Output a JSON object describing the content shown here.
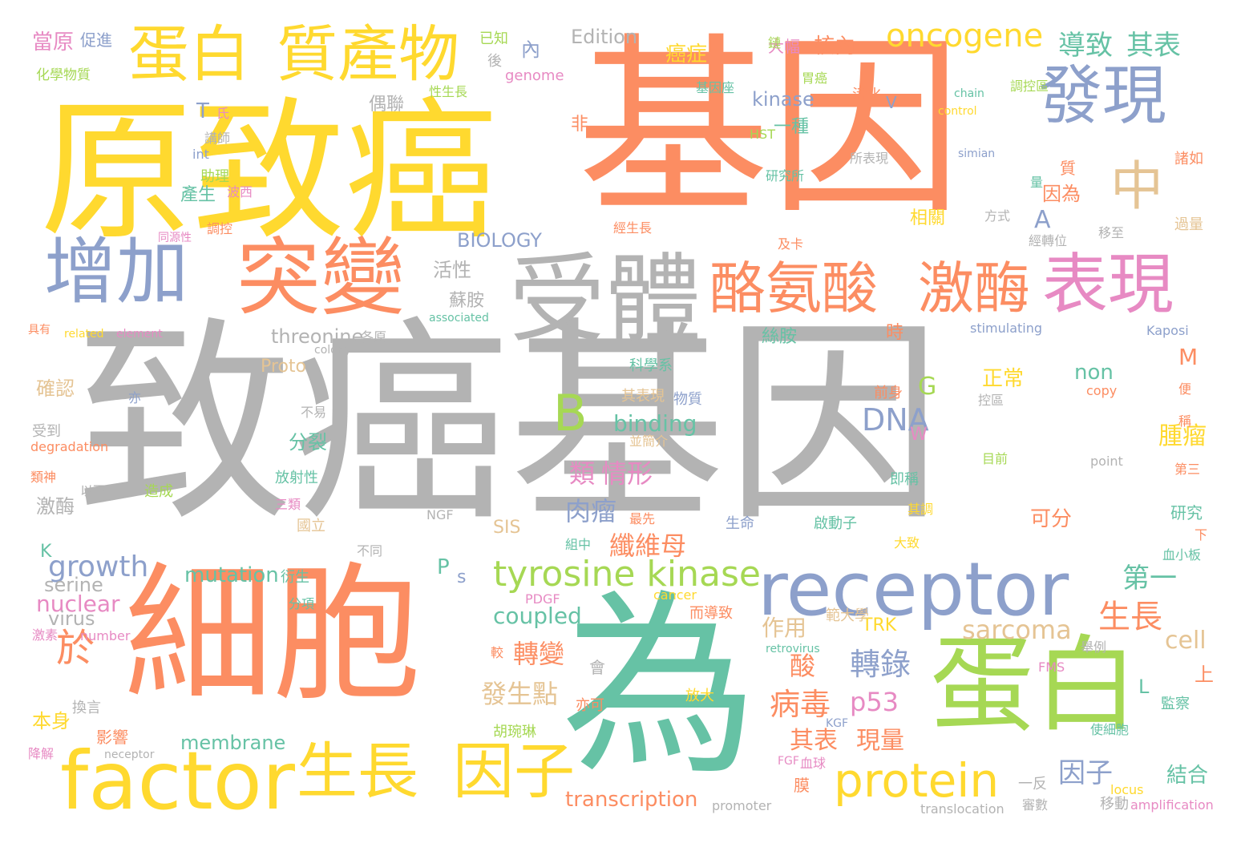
{
  "palette": {
    "orange": "#fc8d62",
    "teal": "#66c2a5",
    "blue": "#8da0cb",
    "pink": "#e78ac3",
    "green": "#a6d854",
    "yellow": "#ffd92f",
    "tan": "#e5c494",
    "gray": "#b3b3b3"
  },
  "words": [
    {
      "text": "致癌基因",
      "color": "gray"
    },
    {
      "text": "基因",
      "color": "orange"
    },
    {
      "text": "原致癌",
      "color": "yellow"
    },
    {
      "text": "細胞",
      "color": "orange"
    },
    {
      "text": "為",
      "color": "teal"
    },
    {
      "text": "蛋白",
      "color": "green"
    },
    {
      "text": "receptor",
      "color": "blue"
    },
    {
      "text": "factor",
      "color": "yellow"
    },
    {
      "text": "受體",
      "color": "gray"
    },
    {
      "text": "突變",
      "color": "orange"
    },
    {
      "text": "增加",
      "color": "blue"
    },
    {
      "text": "蛋白",
      "color": "yellow"
    },
    {
      "text": "質產物",
      "color": "yellow"
    },
    {
      "text": "發現",
      "color": "blue"
    },
    {
      "text": "中",
      "color": "tan"
    },
    {
      "text": "表現",
      "color": "pink"
    },
    {
      "text": "酪氨酸",
      "color": "orange"
    },
    {
      "text": "激酶",
      "color": "orange"
    },
    {
      "text": "生長",
      "color": "yellow"
    },
    {
      "text": "因子",
      "color": "yellow"
    },
    {
      "text": "protein",
      "color": "yellow"
    },
    {
      "text": "tyrosine kinase",
      "color": "green"
    },
    {
      "text": "B",
      "color": "green"
    },
    {
      "text": "oncogene",
      "color": "yellow"
    },
    {
      "text": "於",
      "color": "orange"
    },
    {
      "text": "DNA",
      "color": "blue"
    },
    {
      "text": "轉錄",
      "color": "blue"
    },
    {
      "text": "病毒",
      "color": "orange"
    },
    {
      "text": "p53",
      "color": "pink"
    },
    {
      "text": "sarcoma",
      "color": "tan"
    },
    {
      "text": "生長",
      "color": "orange"
    },
    {
      "text": "growth",
      "color": "blue"
    },
    {
      "text": "coupled",
      "color": "teal"
    },
    {
      "text": "mutation",
      "color": "teal"
    },
    {
      "text": "binding",
      "color": "teal"
    },
    {
      "text": "threonine",
      "color": "gray"
    },
    {
      "text": "membrane",
      "color": "teal"
    },
    {
      "text": "transcription",
      "color": "orange"
    },
    {
      "text": "nuclear",
      "color": "pink"
    },
    {
      "text": "serine",
      "color": "gray"
    },
    {
      "text": "virus",
      "color": "gray"
    },
    {
      "text": "cell",
      "color": "tan"
    },
    {
      "text": "non",
      "color": "teal"
    },
    {
      "text": "kinase",
      "color": "blue"
    },
    {
      "text": "BIOLOGY",
      "color": "blue"
    },
    {
      "text": "Edition",
      "color": "gray"
    },
    {
      "text": "Proto",
      "color": "tan"
    },
    {
      "text": "G",
      "color": "green"
    },
    {
      "text": "A",
      "color": "blue"
    },
    {
      "text": "導致",
      "color": "teal"
    },
    {
      "text": "其表",
      "color": "teal"
    },
    {
      "text": "類",
      "color": "pink"
    },
    {
      "text": "情形",
      "color": "pink"
    },
    {
      "text": "肉瘤",
      "color": "blue"
    },
    {
      "text": "纖維母",
      "color": "orange"
    },
    {
      "text": "作用",
      "color": "tan"
    },
    {
      "text": "轉變",
      "color": "orange"
    },
    {
      "text": "發生點",
      "color": "tan"
    },
    {
      "text": "酸",
      "color": "orange"
    },
    {
      "text": "其表",
      "color": "orange"
    },
    {
      "text": "現量",
      "color": "orange"
    },
    {
      "text": "因子",
      "color": "blue"
    },
    {
      "text": "第一",
      "color": "teal"
    },
    {
      "text": "結合",
      "color": "teal"
    },
    {
      "text": "腫瘤",
      "color": "yellow"
    },
    {
      "text": "可分",
      "color": "orange"
    },
    {
      "text": "正常",
      "color": "yellow"
    },
    {
      "text": "絲胺",
      "color": "teal"
    },
    {
      "text": "時",
      "color": "orange"
    },
    {
      "text": "一種",
      "color": "teal"
    },
    {
      "text": "因為",
      "color": "orange"
    },
    {
      "text": "相關",
      "color": "yellow"
    },
    {
      "text": "活性",
      "color": "gray"
    },
    {
      "text": "蘇胺",
      "color": "gray"
    },
    {
      "text": "偶聯",
      "color": "gray"
    },
    {
      "text": "非",
      "color": "orange"
    },
    {
      "text": "核內",
      "color": "orange"
    },
    {
      "text": "癌症",
      "color": "yellow"
    },
    {
      "text": "大幅",
      "color": "pink"
    },
    {
      "text": "當原",
      "color": "pink"
    },
    {
      "text": "促進",
      "color": "blue"
    },
    {
      "text": "化學物質",
      "color": "green"
    },
    {
      "text": "內",
      "color": "blue"
    },
    {
      "text": "已知",
      "color": "green"
    },
    {
      "text": "後",
      "color": "gray"
    },
    {
      "text": "T",
      "color": "blue"
    },
    {
      "text": "氏",
      "color": "pink"
    },
    {
      "text": "產生",
      "color": "teal"
    },
    {
      "text": "助理",
      "color": "green"
    },
    {
      "text": "講師",
      "color": "gray"
    },
    {
      "text": "確認",
      "color": "tan"
    },
    {
      "text": "激酶",
      "color": "gray"
    },
    {
      "text": "分裂",
      "color": "teal"
    },
    {
      "text": "受到",
      "color": "gray"
    },
    {
      "text": "本身",
      "color": "yellow"
    },
    {
      "text": "影響",
      "color": "orange"
    },
    {
      "text": "換言",
      "color": "gray"
    },
    {
      "text": "降解",
      "color": "pink"
    },
    {
      "text": "K",
      "color": "teal"
    },
    {
      "text": "P",
      "color": "teal"
    },
    {
      "text": "s",
      "color": "blue"
    },
    {
      "text": "W",
      "color": "pink"
    },
    {
      "text": "M",
      "color": "orange"
    },
    {
      "text": "L",
      "color": "teal"
    },
    {
      "text": "V",
      "color": "blue"
    },
    {
      "text": "SIS",
      "color": "tan"
    },
    {
      "text": "TRK",
      "color": "yellow"
    },
    {
      "text": "PDGF",
      "color": "pink"
    },
    {
      "text": "FMS",
      "color": "pink"
    },
    {
      "text": "KGF",
      "color": "blue"
    },
    {
      "text": "FGF",
      "color": "pink"
    },
    {
      "text": "NGF",
      "color": "gray"
    },
    {
      "text": "HST",
      "color": "green"
    },
    {
      "text": "int",
      "color": "blue"
    },
    {
      "text": "genome",
      "color": "pink"
    },
    {
      "text": "chain",
      "color": "teal"
    },
    {
      "text": "control",
      "color": "yellow"
    },
    {
      "text": "simian",
      "color": "blue"
    },
    {
      "text": "stimulating",
      "color": "blue"
    },
    {
      "text": "Kaposi",
      "color": "blue"
    },
    {
      "text": "copy",
      "color": "orange"
    },
    {
      "text": "point",
      "color": "gray"
    },
    {
      "text": "related",
      "color": "yellow"
    },
    {
      "text": "element",
      "color": "pink"
    },
    {
      "text": "associated",
      "color": "teal"
    },
    {
      "text": "colony",
      "color": "gray"
    },
    {
      "text": "degradation",
      "color": "orange"
    },
    {
      "text": "number",
      "color": "pink"
    },
    {
      "text": "neceptor",
      "color": "gray"
    },
    {
      "text": "cancer",
      "color": "yellow"
    },
    {
      "text": "retrovirus",
      "color": "teal"
    },
    {
      "text": "promoter",
      "color": "gray"
    },
    {
      "text": "locus",
      "color": "yellow"
    },
    {
      "text": "translocation",
      "color": "gray"
    },
    {
      "text": "amplification",
      "color": "pink"
    },
    {
      "text": "生命",
      "color": "blue"
    },
    {
      "text": "啟動子",
      "color": "teal"
    },
    {
      "text": "組中",
      "color": "teal"
    },
    {
      "text": "大致",
      "color": "yellow"
    },
    {
      "text": "不同",
      "color": "gray"
    },
    {
      "text": "衍生",
      "color": "teal"
    },
    {
      "text": "分項",
      "color": "teal"
    },
    {
      "text": "激素",
      "color": "pink"
    },
    {
      "text": "會",
      "color": "gray"
    },
    {
      "text": "較",
      "color": "orange"
    },
    {
      "text": "亦可",
      "color": "orange"
    },
    {
      "text": "胡琬琳",
      "color": "green"
    },
    {
      "text": "放大",
      "color": "yellow"
    },
    {
      "text": "而導致",
      "color": "orange"
    },
    {
      "text": "範大學",
      "color": "tan"
    },
    {
      "text": "血球",
      "color": "pink"
    },
    {
      "text": "一反",
      "color": "gray"
    },
    {
      "text": "移動",
      "color": "gray"
    },
    {
      "text": "審數",
      "color": "gray"
    },
    {
      "text": "膜",
      "color": "orange"
    },
    {
      "text": "即稱",
      "color": "teal"
    },
    {
      "text": "最先",
      "color": "orange"
    },
    {
      "text": "其調",
      "color": "yellow"
    },
    {
      "text": "科學系",
      "color": "teal"
    },
    {
      "text": "其表現",
      "color": "tan"
    },
    {
      "text": "物質",
      "color": "blue"
    },
    {
      "text": "不易",
      "color": "gray"
    },
    {
      "text": "並簡介",
      "color": "tan"
    },
    {
      "text": "放射性",
      "color": "teal"
    },
    {
      "text": "三類",
      "color": "pink"
    },
    {
      "text": "國立",
      "color": "tan"
    },
    {
      "text": "以下",
      "color": "gray"
    },
    {
      "text": "造成",
      "color": "green"
    },
    {
      "text": "亦",
      "color": "blue"
    },
    {
      "text": "類神",
      "color": "orange"
    },
    {
      "text": "具有",
      "color": "orange"
    },
    {
      "text": "各原",
      "color": "gray"
    },
    {
      "text": "前身",
      "color": "orange"
    },
    {
      "text": "控區",
      "color": "gray"
    },
    {
      "text": "目前",
      "color": "green"
    },
    {
      "text": "便",
      "color": "orange"
    },
    {
      "text": "稱",
      "color": "orange"
    },
    {
      "text": "第三",
      "color": "orange"
    },
    {
      "text": "研究",
      "color": "teal"
    },
    {
      "text": "下",
      "color": "orange"
    },
    {
      "text": "血小板",
      "color": "teal"
    },
    {
      "text": "舉例",
      "color": "gray"
    },
    {
      "text": "上",
      "color": "orange"
    },
    {
      "text": "監察",
      "color": "teal"
    },
    {
      "text": "使細胞",
      "color": "teal"
    },
    {
      "text": "同源性",
      "color": "pink"
    },
    {
      "text": "調控",
      "color": "orange"
    },
    {
      "text": "波西",
      "color": "pink"
    },
    {
      "text": "經生長",
      "color": "orange"
    },
    {
      "text": "及卡",
      "color": "orange"
    },
    {
      "text": "研究所",
      "color": "teal"
    },
    {
      "text": "所表現",
      "color": "gray"
    },
    {
      "text": "調控區",
      "color": "green"
    },
    {
      "text": "諸如",
      "color": "orange"
    },
    {
      "text": "過量",
      "color": "tan"
    },
    {
      "text": "方式",
      "color": "gray"
    },
    {
      "text": "移至",
      "color": "gray"
    },
    {
      "text": "經轉位",
      "color": "gray"
    },
    {
      "text": "質",
      "color": "orange"
    },
    {
      "text": "量",
      "color": "teal"
    },
    {
      "text": "活化",
      "color": "orange"
    },
    {
      "text": "胃癌",
      "color": "green"
    },
    {
      "text": "基因座",
      "color": "teal"
    },
    {
      "text": "鏈",
      "color": "green"
    },
    {
      "text": "性生長",
      "color": "green"
    }
  ]
}
